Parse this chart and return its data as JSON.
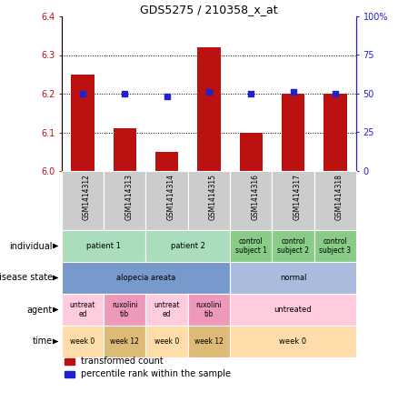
{
  "title": "GDS5275 / 210358_x_at",
  "samples": [
    "GSM1414312",
    "GSM1414313",
    "GSM1414314",
    "GSM1414315",
    "GSM1414316",
    "GSM1414317",
    "GSM1414318"
  ],
  "bar_values": [
    6.25,
    6.11,
    6.05,
    6.32,
    6.1,
    6.2,
    6.2
  ],
  "dot_values": [
    50,
    50,
    48,
    51,
    50,
    51,
    50
  ],
  "ylim_left": [
    6.0,
    6.4
  ],
  "ylim_right": [
    0,
    100
  ],
  "yticks_left": [
    6.0,
    6.1,
    6.2,
    6.3,
    6.4
  ],
  "yticks_right": [
    0,
    25,
    50,
    75,
    100
  ],
  "bar_color": "#BB1111",
  "dot_color": "#2222CC",
  "sample_bg_color": "#CCCCCC",
  "annotation_rows": [
    {
      "key": "individual",
      "label": "individual",
      "groups": [
        {
          "text": "patient 1",
          "cols": [
            0,
            1
          ],
          "color": "#AADDBB"
        },
        {
          "text": "patient 2",
          "cols": [
            2,
            3
          ],
          "color": "#AADDBB"
        },
        {
          "text": "control\nsubject 1",
          "cols": [
            4,
            4
          ],
          "color": "#88CC88"
        },
        {
          "text": "control\nsubject 2",
          "cols": [
            5,
            5
          ],
          "color": "#88CC88"
        },
        {
          "text": "control\nsubject 3",
          "cols": [
            6,
            6
          ],
          "color": "#88CC88"
        }
      ]
    },
    {
      "key": "disease_state",
      "label": "disease state",
      "groups": [
        {
          "text": "alopecia areata",
          "cols": [
            0,
            3
          ],
          "color": "#7799CC"
        },
        {
          "text": "normal",
          "cols": [
            4,
            6
          ],
          "color": "#AABBDD"
        }
      ]
    },
    {
      "key": "agent",
      "label": "agent",
      "groups": [
        {
          "text": "untreat\ned",
          "cols": [
            0,
            0
          ],
          "color": "#FFCCDD"
        },
        {
          "text": "ruxolini\ntib",
          "cols": [
            1,
            1
          ],
          "color": "#EE99BB"
        },
        {
          "text": "untreat\ned",
          "cols": [
            2,
            2
          ],
          "color": "#FFCCDD"
        },
        {
          "text": "ruxolini\ntib",
          "cols": [
            3,
            3
          ],
          "color": "#EE99BB"
        },
        {
          "text": "untreated",
          "cols": [
            4,
            6
          ],
          "color": "#FFCCDD"
        }
      ]
    },
    {
      "key": "time",
      "label": "time",
      "groups": [
        {
          "text": "week 0",
          "cols": [
            0,
            0
          ],
          "color": "#FFDDAA"
        },
        {
          "text": "week 12",
          "cols": [
            1,
            1
          ],
          "color": "#DDBB77"
        },
        {
          "text": "week 0",
          "cols": [
            2,
            2
          ],
          "color": "#FFDDAA"
        },
        {
          "text": "week 12",
          "cols": [
            3,
            3
          ],
          "color": "#DDBB77"
        },
        {
          "text": "week 0",
          "cols": [
            4,
            6
          ],
          "color": "#FFDDAA"
        }
      ]
    }
  ],
  "legend": [
    {
      "color": "#BB1111",
      "label": "transformed count"
    },
    {
      "color": "#2222CC",
      "label": "percentile rank within the sample"
    }
  ]
}
